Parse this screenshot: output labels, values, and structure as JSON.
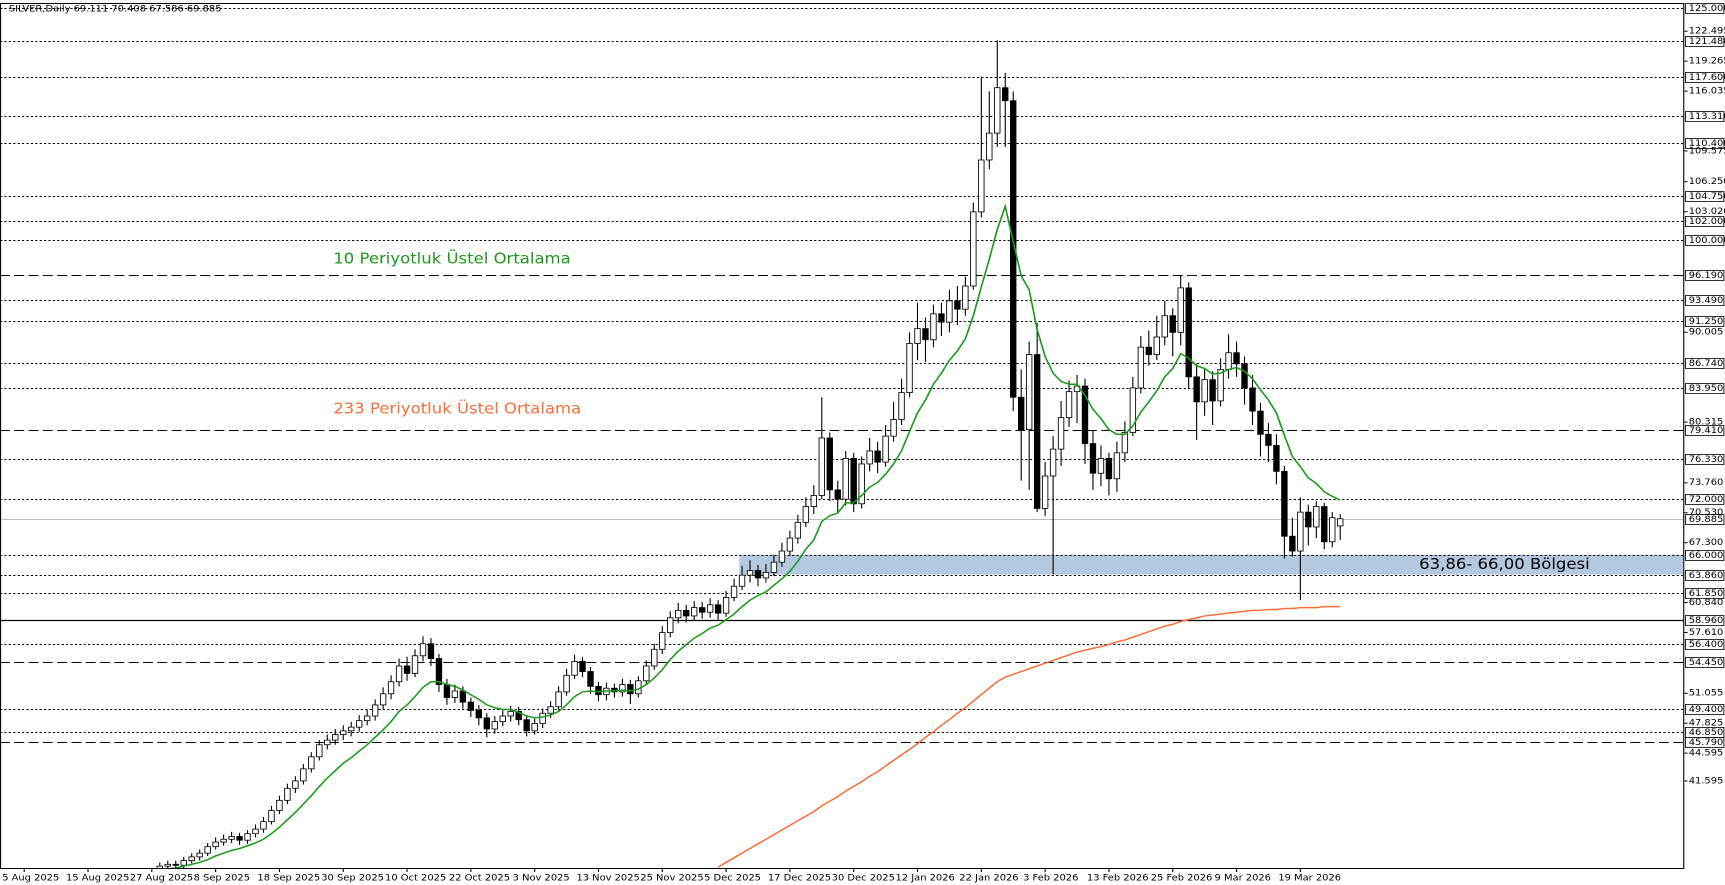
{
  "chart_data": {
    "type": "candlestick",
    "title": "SILVER,Daily  69.111 70.408 67.586 69.885",
    "categories": [
      "5 Aug 2025",
      null,
      null,
      null,
      null,
      null,
      null,
      null,
      "15 Aug 2025",
      null,
      null,
      null,
      null,
      null,
      null,
      null,
      "27 Aug 2025",
      null,
      null,
      null,
      null,
      null,
      null,
      null,
      "8 Sep 2025",
      null,
      null,
      null,
      null,
      null,
      null,
      null,
      "18 Sep 2025",
      null,
      null,
      null,
      null,
      null,
      null,
      null,
      "30 Sep 2025",
      null,
      null,
      null,
      null,
      null,
      null,
      null,
      "10 Oct 2025",
      null,
      null,
      null,
      null,
      null,
      null,
      null,
      "22 Oct 2025",
      null,
      null,
      null,
      null,
      null,
      null,
      null,
      "3 Nov 2025",
      null,
      null,
      null,
      null,
      null,
      null,
      null,
      "13 Nov 2025",
      null,
      null,
      null,
      null,
      null,
      null,
      null,
      "25 Nov 2025",
      null,
      null,
      null,
      null,
      null,
      null,
      null,
      "5 Dec 2025",
      null,
      null,
      null,
      null,
      null,
      null,
      null,
      "17 Dec 2025",
      null,
      null,
      null,
      null,
      null,
      null,
      null,
      "30 Dec 2025",
      null,
      null,
      null,
      null,
      null,
      null,
      null,
      "12 Jan 2026",
      null,
      null,
      null,
      null,
      null,
      null,
      null,
      "22 Jan 2026",
      null,
      null,
      null,
      null,
      null,
      null,
      null,
      "3 Feb 2026",
      null,
      null,
      null,
      null,
      null,
      null,
      null,
      "13 Feb 2026",
      null,
      null,
      null,
      null,
      null,
      null,
      null,
      "25 Feb 2026",
      null,
      null,
      null,
      null,
      null,
      null,
      null,
      "9 Mar 2026",
      null,
      null,
      null,
      null,
      null,
      null,
      null,
      "19 Mar 2026",
      null,
      null,
      null,
      null,
      null
    ],
    "open": [
      null,
      null,
      null,
      null,
      null,
      null,
      null,
      null,
      null,
      null,
      null,
      null,
      null,
      null,
      null,
      null,
      null,
      32.0,
      32.4,
      32.6,
      32.5,
      33.0,
      33.4,
      33.8,
      34.5,
      35.0,
      35.3,
      35.6,
      35.2,
      35.9,
      36.4,
      37.2,
      38.4,
      39.5,
      40.8,
      41.6,
      42.9,
      44.2,
      45.5,
      46.0,
      46.6,
      47.0,
      47.4,
      48.1,
      48.6,
      49.8,
      51.0,
      52.3,
      54.0,
      53.2,
      55.1,
      56.4,
      54.8,
      52.0,
      50.6,
      51.3,
      50.1,
      49.2,
      48.4,
      47.2,
      48.0,
      48.6,
      49.1,
      48.2,
      47.0,
      47.8,
      48.9,
      49.6,
      51.2,
      53.0,
      54.5,
      53.4,
      51.8,
      50.9,
      51.6,
      51.2,
      52.0,
      51.0,
      52.4,
      54.0,
      55.8,
      57.6,
      59.2,
      60.0,
      59.4,
      60.3,
      59.8,
      60.6,
      59.7,
      61.4,
      62.6,
      63.8,
      64.3,
      63.5,
      64.1,
      65.2,
      66.4,
      67.8,
      69.5,
      71.2,
      72.4,
      78.6,
      73.0,
      72.0,
      76.4,
      71.5,
      75.8,
      77.2,
      76.0,
      78.8,
      80.6,
      83.5,
      88.8,
      90.4,
      89.2,
      92.0,
      91.1,
      93.4,
      92.5,
      95.0,
      103.0,
      108.6,
      111.5,
      116.4,
      115.0,
      83.0,
      79.5,
      87.6,
      71.0,
      74.5,
      77.4,
      80.8,
      83.6,
      84.2,
      78.0,
      74.8,
      76.4,
      74.2,
      77.0,
      79.2,
      84.0,
      88.4,
      87.6,
      89.5,
      91.8,
      90.0,
      94.8,
      85.2,
      82.5,
      84.9,
      82.6,
      86.0,
      87.8,
      86.6,
      84.0,
      81.5,
      79.0,
      77.8,
      75.0,
      68.0,
      66.4,
      70.6,
      69.0,
      71.2,
      67.4,
      69.111
    ],
    "high": [
      null,
      null,
      null,
      null,
      null,
      null,
      null,
      null,
      null,
      null,
      null,
      null,
      null,
      null,
      null,
      null,
      null,
      32.8,
      33.0,
      33.0,
      33.4,
      33.8,
      34.2,
      34.9,
      35.5,
      35.8,
      36.1,
      36.0,
      36.3,
      36.9,
      37.7,
      38.9,
      40.0,
      41.3,
      42.1,
      43.4,
      44.7,
      46.0,
      46.6,
      47.2,
      47.6,
      48.0,
      48.7,
      49.3,
      50.4,
      51.7,
      53.0,
      54.8,
      55.0,
      55.8,
      57.2,
      57.0,
      55.3,
      52.6,
      52.0,
      51.8,
      50.6,
      49.8,
      48.9,
      48.6,
      49.2,
      49.7,
      49.6,
      48.7,
      48.3,
      49.4,
      50.2,
      51.8,
      53.7,
      55.2,
      55.0,
      53.9,
      52.3,
      52.2,
      52.1,
      52.6,
      52.5,
      52.9,
      54.6,
      56.4,
      58.3,
      59.9,
      60.8,
      60.6,
      61.0,
      60.9,
      61.3,
      61.1,
      62.1,
      63.4,
      64.8,
      65.4,
      64.9,
      65.0,
      66.0,
      67.3,
      68.6,
      70.3,
      72.2,
      73.5,
      83.0,
      79.2,
      74.0,
      77.2,
      77.0,
      76.6,
      78.6,
      78.2,
      80.0,
      82.5,
      85.0,
      90.0,
      93.2,
      91.6,
      93.0,
      93.2,
      94.6,
      95.0,
      96.0,
      104.0,
      117.6,
      116.0,
      121.5,
      118.0,
      116.0,
      86.0,
      89.0,
      91.0,
      76.0,
      78.8,
      82.6,
      84.8,
      85.4,
      85.0,
      79.4,
      77.8,
      77.0,
      78.2,
      80.4,
      85.2,
      89.6,
      90.2,
      91.8,
      93.4,
      92.6,
      96.2,
      95.4,
      86.6,
      86.0,
      85.8,
      87.2,
      89.8,
      89.0,
      87.4,
      85.4,
      82.4,
      80.2,
      79.0,
      75.6,
      70.0,
      72.2,
      71.4,
      71.8,
      71.6,
      70.6,
      70.408
    ],
    "low": [
      null,
      null,
      null,
      null,
      null,
      null,
      null,
      null,
      null,
      null,
      null,
      null,
      null,
      null,
      null,
      null,
      null,
      31.7,
      32.1,
      32.1,
      32.2,
      32.7,
      33.0,
      33.5,
      34.2,
      34.6,
      34.9,
      34.7,
      34.8,
      35.5,
      36.0,
      36.9,
      38.0,
      39.1,
      40.3,
      41.2,
      42.5,
      43.8,
      45.0,
      45.5,
      46.0,
      46.4,
      46.9,
      47.6,
      48.1,
      49.3,
      50.4,
      51.8,
      52.4,
      52.8,
      54.5,
      54.0,
      51.2,
      49.8,
      50.0,
      49.4,
      48.5,
      47.6,
      46.3,
      46.7,
      47.5,
      48.0,
      47.6,
      46.4,
      46.6,
      47.3,
      48.4,
      49.2,
      50.8,
      52.6,
      52.8,
      51.0,
      50.2,
      50.3,
      50.6,
      50.7,
      49.9,
      50.6,
      52.0,
      53.6,
      55.3,
      57.1,
      58.6,
      58.7,
      58.9,
      59.1,
      59.2,
      58.9,
      59.3,
      61.0,
      62.2,
      63.0,
      62.6,
      63.0,
      63.7,
      64.7,
      65.9,
      67.2,
      69.0,
      70.4,
      72.0,
      71.8,
      70.5,
      71.3,
      70.6,
      71.0,
      75.0,
      74.8,
      75.5,
      78.2,
      80.0,
      83.0,
      87.0,
      86.8,
      88.4,
      89.6,
      90.0,
      90.8,
      91.8,
      94.6,
      102.4,
      107.6,
      110.0,
      110.0,
      81.5,
      74.0,
      73.0,
      70.6,
      70.2,
      63.9,
      75.6,
      79.8,
      80.2,
      75.8,
      73.0,
      73.4,
      72.4,
      72.8,
      76.0,
      78.8,
      83.4,
      86.4,
      87.0,
      88.6,
      87.4,
      88.6,
      84.0,
      78.4,
      81.0,
      80.0,
      82.0,
      85.0,
      85.2,
      82.2,
      80.0,
      76.6,
      76.0,
      73.6,
      65.6,
      65.8,
      61.1,
      67.0,
      67.8,
      66.6,
      66.8,
      67.586
    ],
    "close": [
      null,
      null,
      null,
      null,
      null,
      null,
      null,
      null,
      null,
      null,
      null,
      null,
      null,
      null,
      null,
      null,
      null,
      32.4,
      32.6,
      32.5,
      33.0,
      33.4,
      33.8,
      34.5,
      35.0,
      35.3,
      35.6,
      35.2,
      35.9,
      36.4,
      37.2,
      38.4,
      39.5,
      40.8,
      41.6,
      42.9,
      44.2,
      45.5,
      46.0,
      46.6,
      47.0,
      47.4,
      48.1,
      48.6,
      49.8,
      51.0,
      52.3,
      54.0,
      53.2,
      55.1,
      56.4,
      54.8,
      52.0,
      50.6,
      51.3,
      50.1,
      49.2,
      48.4,
      47.2,
      48.0,
      48.6,
      49.1,
      48.2,
      47.0,
      47.8,
      48.9,
      49.6,
      51.2,
      53.0,
      54.5,
      53.4,
      51.8,
      50.9,
      51.6,
      51.2,
      52.0,
      51.0,
      52.4,
      54.0,
      55.8,
      57.6,
      59.2,
      60.0,
      59.4,
      60.3,
      59.8,
      60.6,
      59.7,
      61.4,
      62.6,
      63.8,
      64.3,
      63.5,
      64.1,
      65.2,
      66.4,
      67.8,
      69.5,
      71.2,
      72.4,
      78.6,
      73.0,
      72.0,
      76.4,
      71.5,
      75.8,
      77.2,
      76.0,
      78.8,
      80.6,
      83.5,
      88.8,
      90.4,
      89.2,
      92.0,
      91.1,
      93.4,
      92.5,
      95.0,
      103.0,
      108.6,
      111.5,
      116.4,
      115.0,
      83.0,
      79.5,
      87.6,
      71.0,
      74.5,
      77.4,
      80.8,
      83.6,
      84.2,
      78.0,
      74.8,
      76.4,
      74.2,
      77.0,
      79.2,
      84.0,
      88.4,
      87.6,
      89.5,
      91.8,
      90.0,
      94.8,
      85.2,
      82.5,
      84.9,
      82.6,
      86.0,
      87.8,
      86.6,
      84.0,
      81.5,
      79.0,
      77.8,
      75.0,
      68.0,
      66.4,
      70.6,
      69.0,
      71.2,
      67.4,
      70.0,
      69.885
    ],
    "lines": [
      {
        "color": "#1a9a1a",
        "values": [
          null,
          null,
          null,
          null,
          null,
          null,
          null,
          null,
          null,
          null,
          null,
          null,
          null,
          null,
          null,
          null,
          null,
          32.0,
          32.1,
          32.2,
          32.4,
          32.6,
          32.8,
          33.1,
          33.5,
          33.8,
          34.1,
          34.3,
          34.6,
          34.9,
          35.3,
          35.9,
          36.6,
          37.4,
          38.2,
          39.1,
          40.0,
          41.0,
          41.9,
          42.7,
          43.5,
          44.1,
          44.8,
          45.5,
          46.3,
          47.1,
          48.0,
          49.1,
          49.8,
          50.7,
          51.7,
          52.3,
          52.3,
          52.0,
          51.8,
          51.4,
          50.9,
          50.4,
          49.8,
          49.5,
          49.3,
          49.3,
          49.0,
          48.6,
          48.4,
          48.5,
          48.7,
          49.1,
          49.8,
          50.7,
          51.2,
          51.3,
          51.2,
          51.3,
          51.3,
          51.4,
          51.3,
          51.5,
          52.0,
          52.7,
          53.6,
          54.7,
          55.6,
          56.3,
          57.0,
          57.5,
          58.1,
          58.4,
          59.0,
          59.6,
          60.4,
          61.1,
          61.6,
          62.0,
          62.7,
          63.4,
          64.2,
          65.3,
          66.6,
          67.6,
          69.6,
          70.2,
          70.5,
          71.6,
          71.6,
          72.4,
          73.3,
          73.8,
          74.7,
          75.8,
          77.2,
          79.3,
          81.3,
          82.7,
          84.4,
          85.6,
          87.0,
          88.0,
          89.3,
          91.8,
          94.9,
          97.9,
          101.1,
          103.6,
          99.8,
          96.1,
          94.6,
          90.3,
          87.4,
          85.6,
          84.7,
          84.4,
          84.4,
          83.2,
          81.7,
          80.7,
          79.5,
          79.0,
          79.0,
          79.9,
          81.4,
          82.5,
          83.7,
          85.2,
          86.1,
          87.7,
          87.2,
          86.4,
          86.1,
          85.5,
          85.6,
          86.0,
          86.2,
          85.8,
          85.0,
          83.8,
          82.7,
          81.3,
          78.9,
          76.6,
          75.5,
          74.3,
          73.7,
          72.8,
          72.3,
          71.9
        ]
      },
      {
        "color": "#f5703c",
        "values": [
          null,
          null,
          null,
          null,
          null,
          null,
          null,
          null,
          null,
          null,
          null,
          null,
          null,
          null,
          null,
          null,
          null,
          null,
          null,
          null,
          null,
          null,
          null,
          null,
          null,
          null,
          null,
          null,
          null,
          null,
          null,
          null,
          null,
          null,
          null,
          null,
          null,
          null,
          null,
          null,
          null,
          null,
          null,
          null,
          null,
          null,
          null,
          null,
          null,
          null,
          null,
          null,
          null,
          null,
          null,
          null,
          null,
          null,
          null,
          null,
          null,
          null,
          null,
          null,
          null,
          null,
          null,
          null,
          null,
          null,
          null,
          null,
          null,
          null,
          null,
          null,
          null,
          null,
          null,
          null,
          null,
          null,
          null,
          null,
          null,
          null,
          null,
          32.3,
          32.8,
          33.3,
          33.8,
          34.3,
          34.8,
          35.3,
          35.8,
          36.3,
          36.8,
          37.3,
          37.8,
          38.3,
          38.9,
          39.4,
          39.9,
          40.5,
          41.0,
          41.5,
          42.1,
          42.6,
          43.2,
          43.8,
          44.4,
          45.0,
          45.6,
          46.3,
          46.9,
          47.6,
          48.2,
          48.9,
          49.5,
          50.2,
          50.9,
          51.6,
          52.3,
          52.8,
          53.1,
          53.4,
          53.7,
          54.0,
          54.3,
          54.6,
          54.9,
          55.2,
          55.5,
          55.7,
          55.9,
          56.1,
          56.3,
          56.6,
          56.8,
          57.1,
          57.4,
          57.7,
          58.0,
          58.3,
          58.5,
          58.8,
          59.0,
          59.2,
          59.4,
          59.5,
          59.6,
          59.7,
          59.8,
          59.9,
          60.0,
          60.0,
          60.1,
          60.1,
          60.2,
          60.2,
          60.3,
          60.3,
          60.3,
          60.4,
          60.4,
          60.4
        ]
      }
    ],
    "annotations": [
      {
        "text": "10 Periyotluk Üstel Ortalama",
        "color": "#1a9a1a"
      },
      {
        "text": "233 Periyotluk Üstel Ortalama",
        "color": "#f5703c"
      }
    ],
    "zone": {
      "label": "63,86- 66,00 Bölgesi",
      "from": 63.86,
      "to": 66.0,
      "color": "#b4c8e0"
    },
    "levels": [
      {
        "value": 125.0,
        "label": "125.000",
        "style": "dotted"
      },
      {
        "value": 121.48,
        "label": "121.480",
        "style": "dotted"
      },
      {
        "value": 117.6,
        "label": "117.600",
        "style": "dotted"
      },
      {
        "value": 113.31,
        "label": "113.310",
        "style": "dotted"
      },
      {
        "value": 110.4,
        "label": "110.400",
        "style": "dotted"
      },
      {
        "value": 104.75,
        "label": "104.750",
        "style": "dotted"
      },
      {
        "value": 102.0,
        "label": "102.000",
        "style": "dotted"
      },
      {
        "value": 100.0,
        "label": "100.000",
        "style": "dotted"
      },
      {
        "value": 96.19,
        "label": "96.190",
        "style": "dashed"
      },
      {
        "value": 93.49,
        "label": "93.490",
        "style": "dotted"
      },
      {
        "value": 91.25,
        "label": "91.250",
        "style": "dotted"
      },
      {
        "value": 86.74,
        "label": "86.740",
        "style": "dotted"
      },
      {
        "value": 83.95,
        "label": "83.950",
        "style": "dotted"
      },
      {
        "value": 79.41,
        "label": "79.410",
        "style": "dashed"
      },
      {
        "value": 76.33,
        "label": "76.330",
        "style": "dotted"
      },
      {
        "value": 72.0,
        "label": "72.000",
        "style": "dotted"
      },
      {
        "value": 69.885,
        "label": "69.885",
        "style": "price"
      },
      {
        "value": 66.0,
        "label": "66.000",
        "style": "dotted"
      },
      {
        "value": 63.86,
        "label": "63.860",
        "style": "dotted"
      },
      {
        "value": 61.85,
        "label": "61.850",
        "style": "dotted"
      },
      {
        "value": 58.96,
        "label": "58.960",
        "style": "solid"
      },
      {
        "value": 56.4,
        "label": "56.400",
        "style": "dotted"
      },
      {
        "value": 54.45,
        "label": "54.450",
        "style": "dashed"
      },
      {
        "value": 49.4,
        "label": "49.400",
        "style": "dotted"
      },
      {
        "value": 46.85,
        "label": "46.850",
        "style": "dotted"
      },
      {
        "value": 45.79,
        "label": "45.790",
        "style": "dashed"
      }
    ],
    "ylim": [
      32.2,
      125.0
    ],
    "yticks": [
      {
        "value": 122.495,
        "label": "122.495"
      },
      {
        "value": 119.265,
        "label": "119.265"
      },
      {
        "value": 116.035,
        "label": "116.035"
      },
      {
        "value": 109.575,
        "label": "109.575"
      },
      {
        "value": 106.25,
        "label": "106.250"
      },
      {
        "value": 103.02,
        "label": "103.020"
      },
      {
        "value": 90.005,
        "label": "90.005"
      },
      {
        "value": 80.315,
        "label": "80.315"
      },
      {
        "value": 73.76,
        "label": "73.760"
      },
      {
        "value": 70.53,
        "label": "70.530"
      },
      {
        "value": 67.3,
        "label": "67.300"
      },
      {
        "value": 60.84,
        "label": "60.840"
      },
      {
        "value": 57.61,
        "label": "57.610"
      },
      {
        "value": 51.055,
        "label": "51.055"
      },
      {
        "value": 47.825,
        "label": "47.825"
      },
      {
        "value": 44.595,
        "label": "44.595"
      },
      {
        "value": 41.595,
        "label": "41.595"
      }
    ]
  }
}
